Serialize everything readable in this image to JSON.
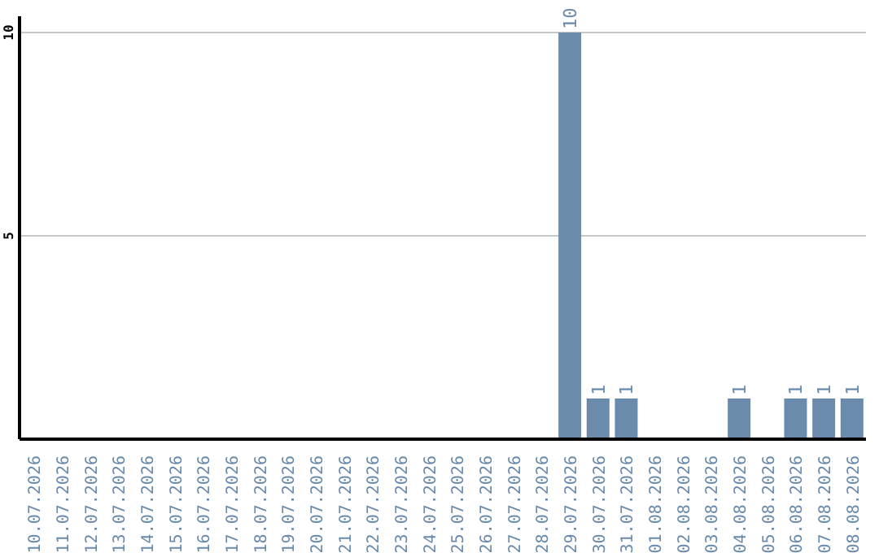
{
  "chart_data": {
    "type": "bar",
    "categories": [
      "10.07.2026",
      "11.07.2026",
      "12.07.2026",
      "13.07.2026",
      "14.07.2026",
      "15.07.2026",
      "16.07.2026",
      "17.07.2026",
      "18.07.2026",
      "19.07.2026",
      "20.07.2026",
      "21.07.2026",
      "22.07.2026",
      "23.07.2026",
      "24.07.2026",
      "25.07.2026",
      "26.07.2026",
      "27.07.2026",
      "28.07.2026",
      "29.07.2026",
      "30.07.2026",
      "31.07.2026",
      "01.08.2026",
      "02.08.2026",
      "03.08.2026",
      "04.08.2026",
      "05.08.2026",
      "06.08.2026",
      "07.08.2026",
      "08.08.2026"
    ],
    "values": [
      null,
      null,
      null,
      null,
      null,
      null,
      null,
      null,
      null,
      null,
      null,
      null,
      null,
      null,
      null,
      null,
      null,
      null,
      null,
      10,
      1,
      1,
      null,
      null,
      null,
      1,
      null,
      1,
      1,
      1
    ],
    "color": "#6a8bab",
    "ylim": [
      0,
      10.4
    ],
    "yticks": [
      5,
      10
    ],
    "grid": "y",
    "data_labels": true
  }
}
